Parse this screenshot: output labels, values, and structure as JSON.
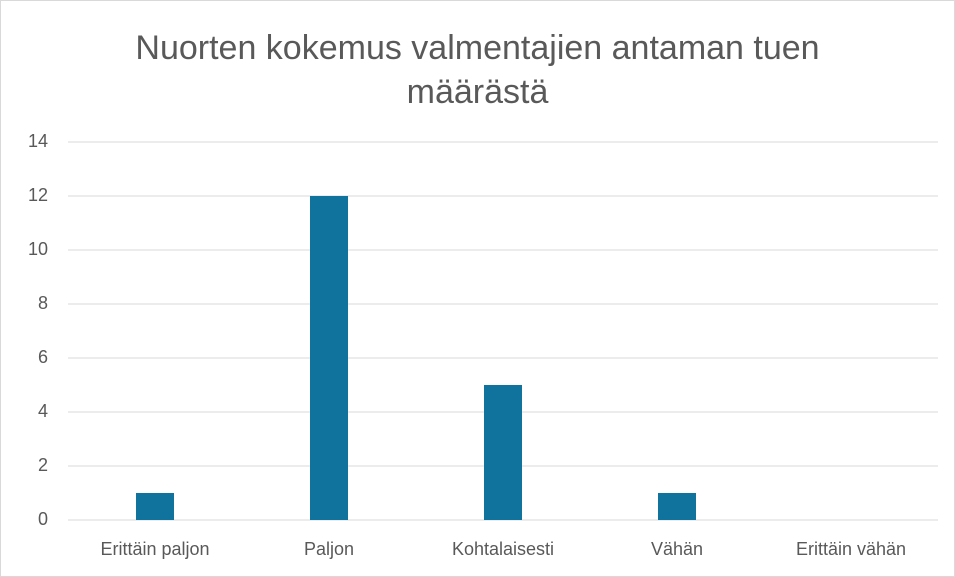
{
  "chart_data": {
    "type": "bar",
    "title": "Nuorten kokemus valmentajien antaman tuen määrästä",
    "categories": [
      "Erittäin paljon",
      "Paljon",
      "Kohtalaisesti",
      "Vähän",
      "Erittäin vähän"
    ],
    "values": [
      1,
      12,
      5,
      1,
      0
    ],
    "color": "#10739e",
    "ylim": [
      0,
      14
    ],
    "yticks": [
      0,
      2,
      4,
      6,
      8,
      10,
      12,
      14
    ],
    "grid": true
  }
}
